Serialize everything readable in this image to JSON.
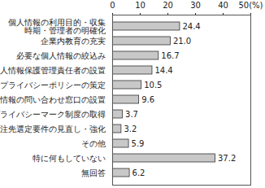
{
  "chart_data": {
    "type": "bar",
    "orientation": "horizontal",
    "categories": [
      "個人情報の利用目的・収集\n時期・管理者の明確化",
      "企業内教育の充実",
      "必要な個人情報の絞込み",
      "個人情報保護管理責任者の設置",
      "プライバシーポリシーの策定",
      "個人情報の問い合わせ窓口の設置",
      "プライバシーマーク制度の取得",
      "外注先選定要件の見直し・強化",
      "その他",
      "特に何もしていない",
      "無回答"
    ],
    "values": [
      24.4,
      21.0,
      16.7,
      14.4,
      10.5,
      9.6,
      3.7,
      3.2,
      5.9,
      37.2,
      6.2
    ],
    "value_labels": [
      "24.4",
      "21.0",
      "16.7",
      "14.4",
      "10.5",
      "9.6",
      "3.7",
      "3.2",
      "5.9",
      "37.2",
      "6.2"
    ],
    "data_labels": true,
    "color": "#c8c8c8",
    "xlim": [
      0,
      50
    ],
    "xticks": [
      0,
      10,
      20,
      30,
      40,
      {
        "value": 50,
        "label": "50(%)"
      }
    ],
    "grid": false
  }
}
